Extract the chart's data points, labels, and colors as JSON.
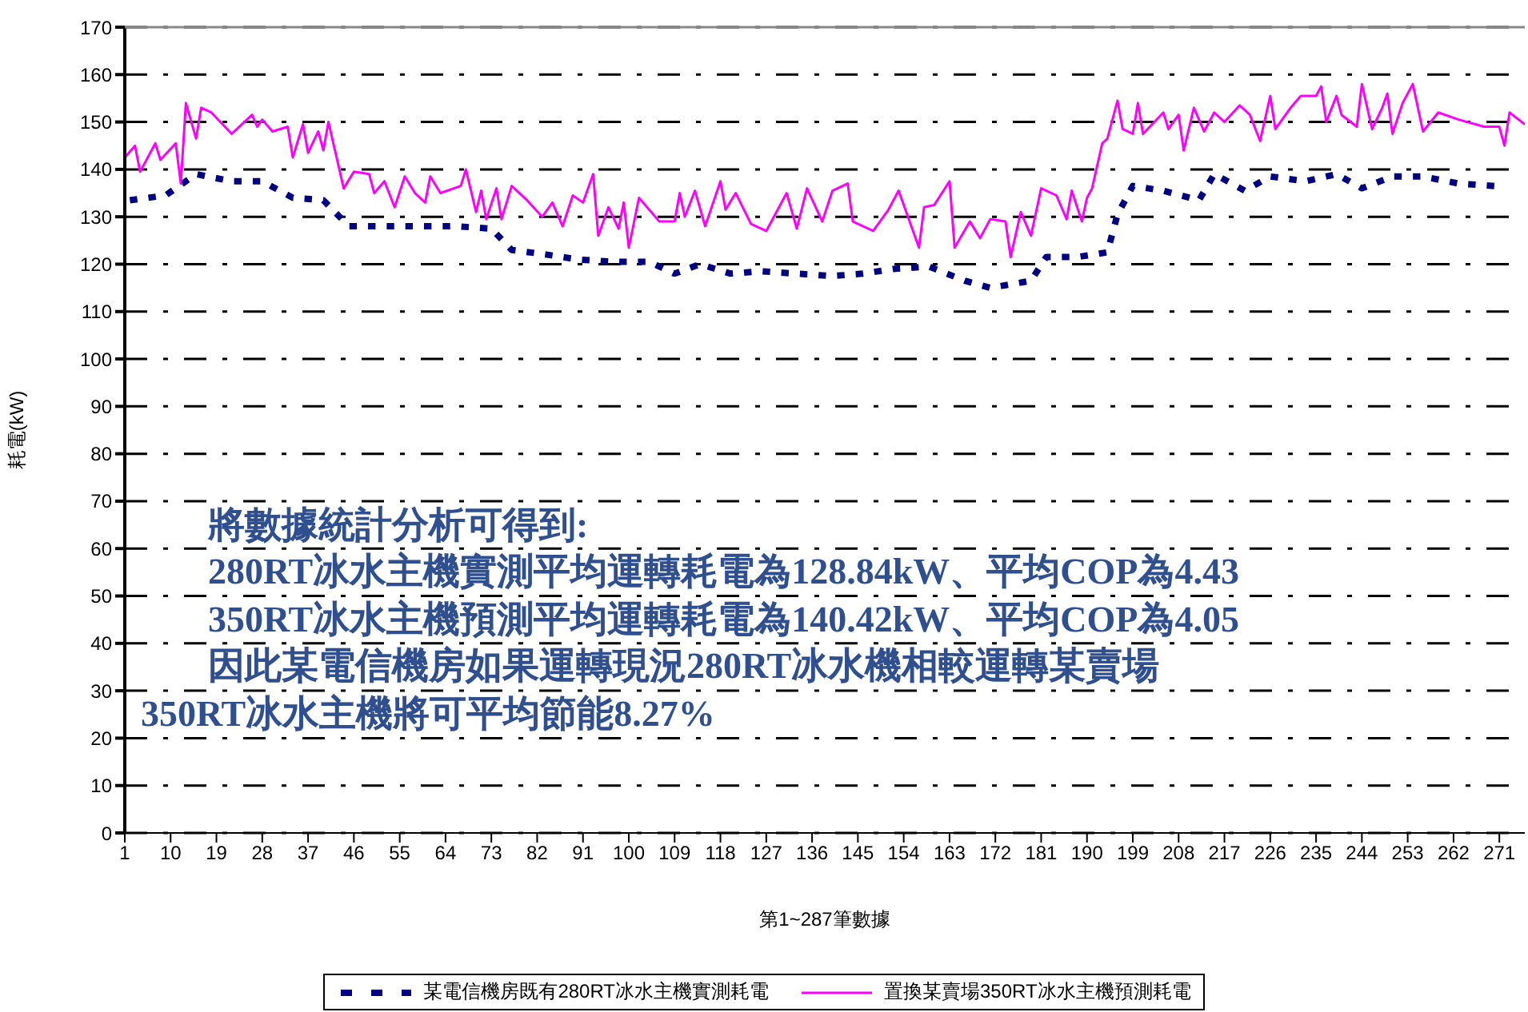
{
  "chart_data": {
    "type": "line",
    "ylabel": "耗電(kW)",
    "xlabel": "第1~287筆數據",
    "xlim": [
      1,
      276
    ],
    "xticks": [
      1,
      10,
      19,
      28,
      37,
      46,
      55,
      64,
      73,
      82,
      91,
      100,
      109,
      118,
      127,
      136,
      145,
      154,
      163,
      172,
      181,
      190,
      199,
      208,
      217,
      226,
      235,
      244,
      253,
      262,
      271
    ],
    "ylim": [
      0,
      170
    ],
    "yticks": [
      0,
      10,
      20,
      30,
      40,
      50,
      60,
      70,
      80,
      90,
      100,
      110,
      120,
      130,
      140,
      150,
      160,
      170
    ],
    "grid": "y",
    "legend": "bottom",
    "marker": "none",
    "series": [
      {
        "name": "某電信機房既有280RT冰水主機實測耗電",
        "color": "#000080",
        "line_style": "dashed",
        "x": [
          2,
          9,
          15,
          22,
          28,
          34,
          40,
          45,
          52,
          59,
          66,
          73,
          77,
          84,
          90,
          97,
          104,
          109,
          114,
          120,
          126,
          133,
          140,
          146,
          152,
          159,
          166,
          171,
          179,
          182,
          188,
          194,
          196,
          199,
          205,
          212,
          215,
          221,
          226,
          233,
          239,
          244,
          250,
          256,
          263,
          270
        ],
        "values": [
          133.5,
          134.5,
          139,
          137.5,
          137.5,
          134,
          133.5,
          128,
          128,
          128,
          128,
          127.5,
          123,
          122,
          121,
          120.5,
          120.5,
          118,
          120,
          118,
          118.5,
          118,
          117.5,
          118,
          119,
          119.5,
          116.5,
          115,
          116.5,
          121.5,
          121.5,
          122.5,
          130.5,
          136.5,
          135.5,
          133.5,
          139,
          135.5,
          138.5,
          137.5,
          139,
          136,
          138.5,
          138.5,
          137,
          136.5
        ]
      },
      {
        "name": "置換某賣場350RT冰水主機預測耗電",
        "color": "#ff00ff",
        "line_style": "solid",
        "x": [
          1,
          3,
          4,
          7,
          8,
          11,
          12,
          13,
          15,
          16,
          18,
          22,
          26,
          27,
          28,
          30,
          33,
          34,
          36,
          37,
          39,
          40,
          41,
          44,
          46,
          49,
          50,
          52,
          54,
          56,
          58,
          60,
          61,
          63,
          67,
          68,
          70,
          71,
          72,
          74,
          75,
          77,
          80,
          83,
          85,
          87,
          89,
          91,
          93,
          94,
          96,
          98,
          99,
          100,
          102,
          106,
          109,
          110,
          111,
          113,
          115,
          118,
          119,
          121,
          124,
          125,
          127,
          131,
          133,
          135,
          138,
          140,
          143,
          144,
          148,
          151,
          153,
          155,
          157,
          158,
          160,
          163,
          164,
          167,
          169,
          171,
          174,
          175,
          177,
          179,
          181,
          184,
          186,
          187,
          189,
          190,
          191,
          193,
          194,
          196,
          197,
          199,
          200,
          201,
          205,
          206,
          208,
          209,
          211,
          213,
          215,
          217,
          220,
          222,
          224,
          226,
          227,
          230,
          232,
          235,
          236,
          237,
          239,
          240,
          243,
          244,
          246,
          248,
          249,
          250,
          252,
          254,
          256,
          259,
          263,
          268,
          271,
          272,
          273,
          276
        ],
        "values": [
          142.5,
          145,
          139.5,
          145.5,
          142,
          145.5,
          137,
          154,
          146.5,
          153,
          152,
          147.5,
          151.5,
          149,
          150.5,
          148,
          149,
          142.5,
          149.5,
          143.5,
          148,
          144,
          150,
          136,
          139.5,
          139,
          135,
          137.5,
          132,
          138.5,
          135,
          133,
          138.5,
          135,
          136.5,
          140,
          131,
          135.5,
          129.5,
          136,
          129.5,
          136.5,
          133.5,
          130,
          133,
          128,
          134.5,
          133,
          139,
          126,
          132,
          127.5,
          133,
          123.5,
          134,
          129,
          129,
          135,
          130,
          135.5,
          128,
          137.5,
          131.5,
          135,
          128.5,
          128,
          127,
          135,
          127.5,
          136,
          129,
          135.5,
          137,
          129,
          127,
          131.5,
          135.5,
          129.5,
          123.5,
          132,
          132.5,
          137.5,
          123.5,
          129,
          125.5,
          129.5,
          129,
          121.5,
          131,
          126,
          136,
          134.5,
          129.5,
          135.5,
          129,
          134,
          136,
          145.5,
          146.5,
          154.5,
          148.5,
          147.5,
          154,
          147.5,
          152,
          148.5,
          151.5,
          144,
          153,
          148,
          152,
          150,
          153.5,
          151.5,
          146,
          155.5,
          148.5,
          153,
          155.5,
          155.5,
          157.5,
          150,
          155.5,
          151.5,
          149,
          158,
          148.5,
          153,
          156,
          147.5,
          154,
          158,
          148,
          152,
          150.5,
          149,
          149,
          145,
          152,
          149.5
        ]
      }
    ],
    "annotations": [
      "將數據統計分析可得到:",
      "280RT冰水主機實測平均運轉耗電為128.84kW、平均COP為4.43",
      "350RT冰水主機預測平均運轉耗電為140.42kW、平均COP為4.05",
      "因此某電信機房如果運轉現況280RT冰水機相較運轉某賣場",
      "350RT冰水主機將可平均節能8.27%"
    ]
  }
}
